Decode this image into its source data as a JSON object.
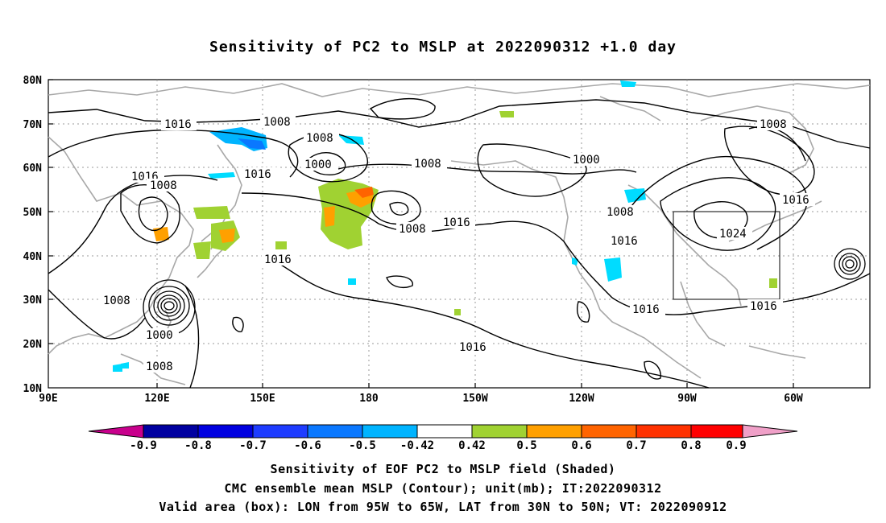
{
  "title": "Sensitivity of PC2 to MSLP at 2022090312 +1.0 day",
  "lat_labels": [
    "80N",
    "70N",
    "60N",
    "50N",
    "40N",
    "30N",
    "20N",
    "10N"
  ],
  "lon_labels": [
    "90E",
    "120E",
    "150E",
    "180",
    "150W",
    "120W",
    "90W",
    "60W"
  ],
  "contour_labels": {
    "c1016_nw": "1016",
    "c1008_top": "1008",
    "c1008_a": "1008",
    "c1000_a": "1000",
    "c1008_b": "1008",
    "c1016_w": "1016",
    "c1008_w": "1008",
    "c1016_mid": "1016",
    "c1008_c": "1008",
    "c1016_c": "1016",
    "c1000_b": "1000",
    "c1008_ne": "1008",
    "c1016_ne": "1016",
    "c1008_d": "1008",
    "c1016_d": "1016",
    "c1024": "1024",
    "c1016_gulf": "1016",
    "c1016_atl": "1016",
    "c1016_pac": "1016",
    "c1008_sw": "1008",
    "c1000_ty": "1000",
    "c1008_ty": "1008"
  },
  "colorbar": {
    "labels": [
      "-0.9",
      "-0.8",
      "-0.7",
      "-0.6",
      "-0.5",
      "-0.42",
      "0.42",
      "0.5",
      "0.6",
      "0.7",
      "0.8",
      "0.9"
    ],
    "colors": [
      "#c8008c",
      "#0000a0",
      "#0000e0",
      "#1e3cff",
      "#0a78ff",
      "#00b4ff",
      "#00dcff",
      "#ffffff",
      "#a0d232",
      "#ffa000",
      "#ff6400",
      "#ff3200",
      "#ff0000",
      "#f0a0c8"
    ]
  },
  "validity_box": {
    "lon_from": "95W",
    "lon_to": "65W",
    "lat_from": "30N",
    "lat_to": "50N"
  },
  "captions": {
    "line1": "Sensitivity of EOF PC2 to MSLP field (Shaded)",
    "line2": "CMC ensemble mean MSLP (Contour); unit(mb); IT:2022090312",
    "line3": "Valid area (box): LON from 95W to 65W, LAT from 30N to 50N; VT: 2022090912"
  },
  "colors": {
    "contour": "#000000",
    "coast": "#a8a8a8",
    "grid": "#9a9a9a"
  }
}
